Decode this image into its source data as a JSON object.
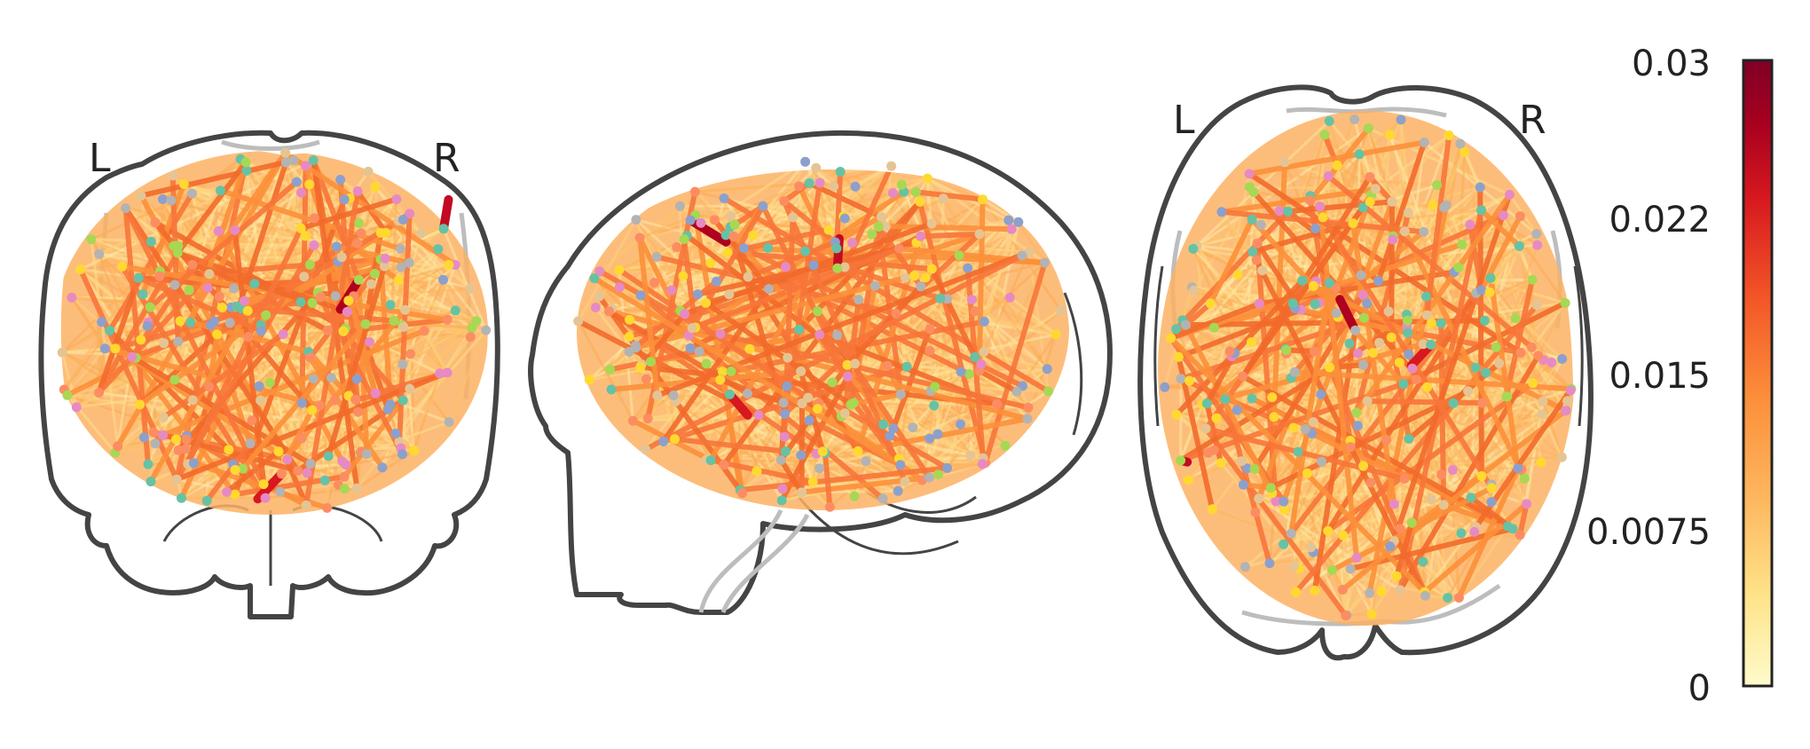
{
  "views": [
    {
      "id": "coronal",
      "left_label": "L",
      "right_label": "R"
    },
    {
      "id": "sagittal"
    },
    {
      "id": "axial",
      "left_label": "L",
      "right_label": "R"
    }
  ],
  "colorbar": {
    "min": 0,
    "max": 0.03,
    "tick_labels": [
      "0.03",
      "0.022",
      "0.015",
      "0.0075",
      "0"
    ],
    "colors": [
      "#fffbcc",
      "#fee48a",
      "#fdb75e",
      "#fc8f3a",
      "#f35627",
      "#d7181f",
      "#a7001f",
      "#800026"
    ]
  },
  "node_colors": [
    "#66c2a5",
    "#fc8d62",
    "#8da0cb",
    "#e78ac3",
    "#a6d854",
    "#ffd92f",
    "#e5c494",
    "#b3b3b3"
  ]
}
